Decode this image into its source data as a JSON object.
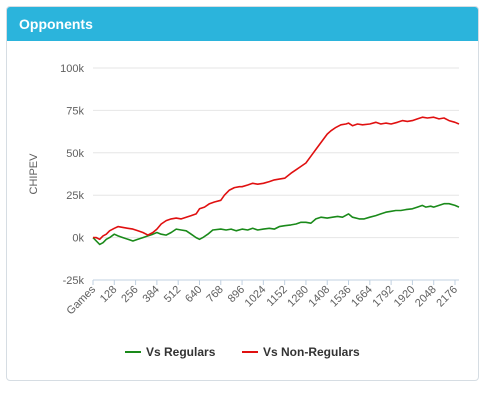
{
  "panel": {
    "title": "Opponents"
  },
  "colors": {
    "header_bg": "#2bb4dc",
    "regulars": "#1a8a1a",
    "non_regulars": "#e01010",
    "grid": "#e6e6e6",
    "axis_text": "#606060"
  },
  "chart_data": {
    "type": "line",
    "title": "",
    "ylabel": "CHIPEV",
    "xlabel": "",
    "ylim": [
      -25000,
      100000
    ],
    "yticks": [
      {
        "value": -25000,
        "label": "-25k"
      },
      {
        "value": 0,
        "label": "0k"
      },
      {
        "value": 25000,
        "label": "25k"
      },
      {
        "value": 50000,
        "label": "50k"
      },
      {
        "value": 75000,
        "label": "75k"
      },
      {
        "value": 100000,
        "label": "100k"
      }
    ],
    "xlim": [
      0,
      2200
    ],
    "xticks": [
      {
        "value": 0,
        "label": "Games"
      },
      {
        "value": 128,
        "label": "128"
      },
      {
        "value": 256,
        "label": "256"
      },
      {
        "value": 384,
        "label": "384"
      },
      {
        "value": 512,
        "label": "512"
      },
      {
        "value": 640,
        "label": "640"
      },
      {
        "value": 768,
        "label": "768"
      },
      {
        "value": 896,
        "label": "896"
      },
      {
        "value": 1024,
        "label": "1024"
      },
      {
        "value": 1152,
        "label": "1152"
      },
      {
        "value": 1280,
        "label": "1280"
      },
      {
        "value": 1408,
        "label": "1408"
      },
      {
        "value": 1536,
        "label": "1536"
      },
      {
        "value": 1664,
        "label": "1664"
      },
      {
        "value": 1792,
        "label": "1792"
      },
      {
        "value": 1920,
        "label": "1920"
      },
      {
        "value": 2048,
        "label": "2048"
      },
      {
        "value": 2176,
        "label": "2176"
      }
    ],
    "grid": "horizontal",
    "legend_position": "bottom-center",
    "series": [
      {
        "name": "Vs Regulars",
        "color": "#1a8a1a",
        "points": [
          [
            0,
            0
          ],
          [
            20,
            -2000
          ],
          [
            40,
            -4000
          ],
          [
            60,
            -3000
          ],
          [
            80,
            -1000
          ],
          [
            100,
            0
          ],
          [
            128,
            2000
          ],
          [
            150,
            1000
          ],
          [
            180,
            0
          ],
          [
            210,
            -1000
          ],
          [
            240,
            -2000
          ],
          [
            270,
            -1000
          ],
          [
            300,
            0
          ],
          [
            330,
            1000
          ],
          [
            360,
            2000
          ],
          [
            384,
            3000
          ],
          [
            410,
            2000
          ],
          [
            440,
            1500
          ],
          [
            470,
            3000
          ],
          [
            500,
            5000
          ],
          [
            530,
            4500
          ],
          [
            560,
            4000
          ],
          [
            590,
            2000
          ],
          [
            620,
            0
          ],
          [
            640,
            -1000
          ],
          [
            660,
            0
          ],
          [
            690,
            2000
          ],
          [
            720,
            4500
          ],
          [
            768,
            5000
          ],
          [
            800,
            4500
          ],
          [
            830,
            5000
          ],
          [
            860,
            4000
          ],
          [
            896,
            5000
          ],
          [
            930,
            4500
          ],
          [
            960,
            5500
          ],
          [
            990,
            4500
          ],
          [
            1024,
            5000
          ],
          [
            1060,
            5500
          ],
          [
            1090,
            5000
          ],
          [
            1120,
            6500
          ],
          [
            1152,
            7000
          ],
          [
            1190,
            7500
          ],
          [
            1220,
            8000
          ],
          [
            1250,
            9000
          ],
          [
            1280,
            9000
          ],
          [
            1310,
            8500
          ],
          [
            1340,
            11000
          ],
          [
            1370,
            12000
          ],
          [
            1408,
            11500
          ],
          [
            1440,
            12000
          ],
          [
            1470,
            12500
          ],
          [
            1500,
            12000
          ],
          [
            1536,
            14000
          ],
          [
            1560,
            12000
          ],
          [
            1600,
            11000
          ],
          [
            1630,
            11000
          ],
          [
            1664,
            12000
          ],
          [
            1700,
            13000
          ],
          [
            1730,
            14000
          ],
          [
            1760,
            15000
          ],
          [
            1792,
            15500
          ],
          [
            1820,
            16000
          ],
          [
            1850,
            16000
          ],
          [
            1880,
            16500
          ],
          [
            1920,
            17000
          ],
          [
            1950,
            18000
          ],
          [
            1980,
            19000
          ],
          [
            2000,
            18000
          ],
          [
            2030,
            18500
          ],
          [
            2048,
            18000
          ],
          [
            2080,
            19000
          ],
          [
            2110,
            20000
          ],
          [
            2140,
            20000
          ],
          [
            2176,
            19000
          ],
          [
            2200,
            18000
          ]
        ]
      },
      {
        "name": "Vs Non-Regulars",
        "color": "#e01010",
        "points": [
          [
            0,
            0
          ],
          [
            20,
            0
          ],
          [
            40,
            -1000
          ],
          [
            60,
            1000
          ],
          [
            80,
            2000
          ],
          [
            100,
            4000
          ],
          [
            128,
            5500
          ],
          [
            150,
            6500
          ],
          [
            180,
            6000
          ],
          [
            210,
            5500
          ],
          [
            240,
            5000
          ],
          [
            270,
            4000
          ],
          [
            300,
            3000
          ],
          [
            330,
            1500
          ],
          [
            360,
            3000
          ],
          [
            384,
            5000
          ],
          [
            410,
            8000
          ],
          [
            440,
            10000
          ],
          [
            470,
            11000
          ],
          [
            500,
            11500
          ],
          [
            530,
            11000
          ],
          [
            560,
            12000
          ],
          [
            590,
            13000
          ],
          [
            620,
            14000
          ],
          [
            640,
            17000
          ],
          [
            670,
            18000
          ],
          [
            700,
            20000
          ],
          [
            730,
            21000
          ],
          [
            768,
            22000
          ],
          [
            790,
            25000
          ],
          [
            820,
            28000
          ],
          [
            850,
            29500
          ],
          [
            880,
            30000
          ],
          [
            896,
            30000
          ],
          [
            930,
            31000
          ],
          [
            960,
            32000
          ],
          [
            990,
            31500
          ],
          [
            1024,
            32000
          ],
          [
            1060,
            33000
          ],
          [
            1090,
            34000
          ],
          [
            1120,
            34500
          ],
          [
            1152,
            35000
          ],
          [
            1190,
            38000
          ],
          [
            1220,
            40000
          ],
          [
            1250,
            42000
          ],
          [
            1280,
            44000
          ],
          [
            1310,
            48000
          ],
          [
            1340,
            52000
          ],
          [
            1370,
            56000
          ],
          [
            1408,
            61000
          ],
          [
            1430,
            63000
          ],
          [
            1460,
            65000
          ],
          [
            1490,
            66500
          ],
          [
            1520,
            67000
          ],
          [
            1536,
            67500
          ],
          [
            1560,
            66000
          ],
          [
            1590,
            67000
          ],
          [
            1620,
            66500
          ],
          [
            1664,
            67000
          ],
          [
            1700,
            68000
          ],
          [
            1730,
            67000
          ],
          [
            1760,
            67500
          ],
          [
            1792,
            67000
          ],
          [
            1830,
            68000
          ],
          [
            1860,
            69000
          ],
          [
            1890,
            68500
          ],
          [
            1920,
            69000
          ],
          [
            1950,
            70000
          ],
          [
            1980,
            71000
          ],
          [
            2010,
            70500
          ],
          [
            2048,
            71000
          ],
          [
            2080,
            70000
          ],
          [
            2110,
            70500
          ],
          [
            2140,
            69000
          ],
          [
            2176,
            68000
          ],
          [
            2200,
            67000
          ]
        ]
      }
    ]
  }
}
